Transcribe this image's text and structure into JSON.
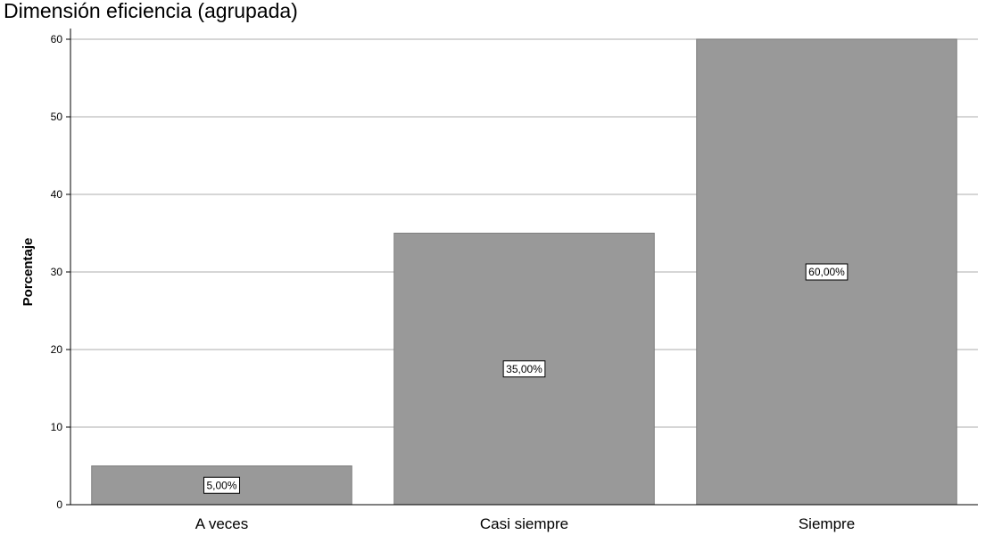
{
  "chart_data": {
    "type": "bar",
    "title": "Dimensión eficiencia (agrupada)",
    "xlabel": "",
    "ylabel": "Porcentaje",
    "ylim": [
      0,
      60
    ],
    "yticks": [
      0,
      10,
      20,
      30,
      40,
      50,
      60
    ],
    "grid": true,
    "legend": "none",
    "categories": [
      "A veces",
      "Casi siempre",
      "Siempre"
    ],
    "values": [
      5,
      35,
      60
    ],
    "data_labels": [
      "5,00%",
      "35,00%",
      "60,00%"
    ],
    "colors": {
      "bar": "#999999",
      "bar_edge": "#7f7f7f",
      "grid": "#c8c8c8",
      "axis": "#000000"
    }
  }
}
